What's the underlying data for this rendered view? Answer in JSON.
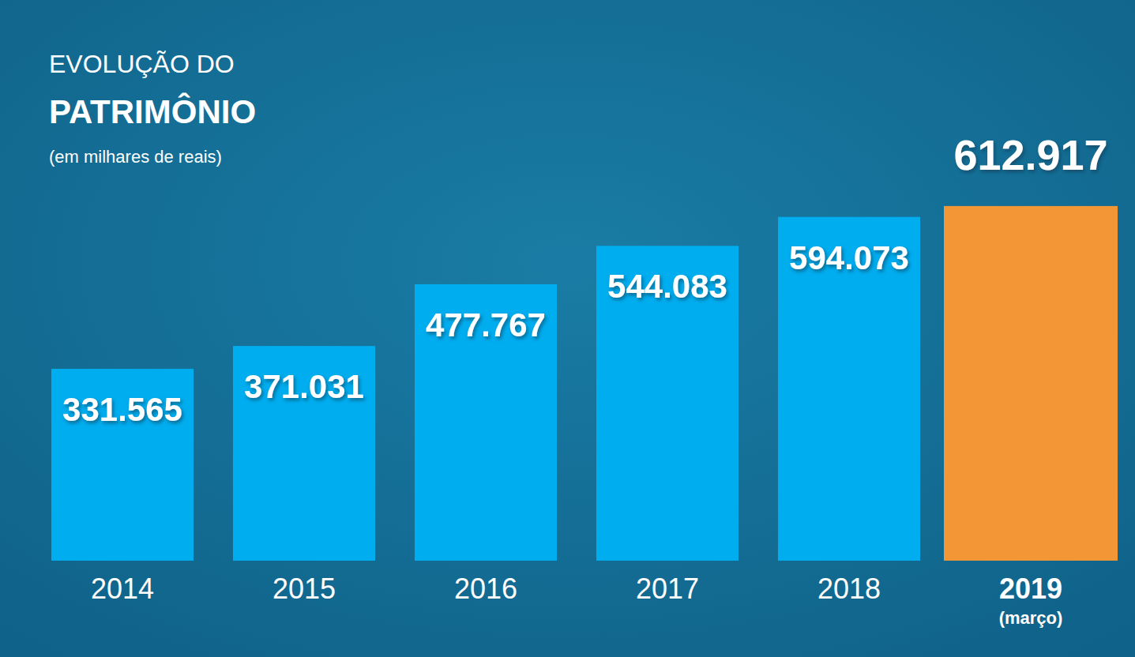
{
  "chart_data": {
    "type": "bar",
    "title": [
      "EVOLUÇÃO DO",
      "PATRIMÔNIO"
    ],
    "subtitle": "(em milhares de reais)",
    "categories": [
      "2014",
      "2015",
      "2016",
      "2017",
      "2018",
      "2019"
    ],
    "values": [
      331565,
      371031,
      477767,
      544083,
      594073,
      612917
    ],
    "value_labels": [
      "331.565",
      "371.031",
      "477.767",
      "544.083",
      "594.073",
      "612.917"
    ],
    "colors": [
      "#00adef",
      "#00adef",
      "#00adef",
      "#00adef",
      "#00adef",
      "#f39636"
    ],
    "annotations": [
      {
        "text": "(março)",
        "category": "2019"
      }
    ],
    "ylim": [
      0,
      969000
    ],
    "data_labels": true,
    "tick_labels": "x",
    "grid": false
  }
}
